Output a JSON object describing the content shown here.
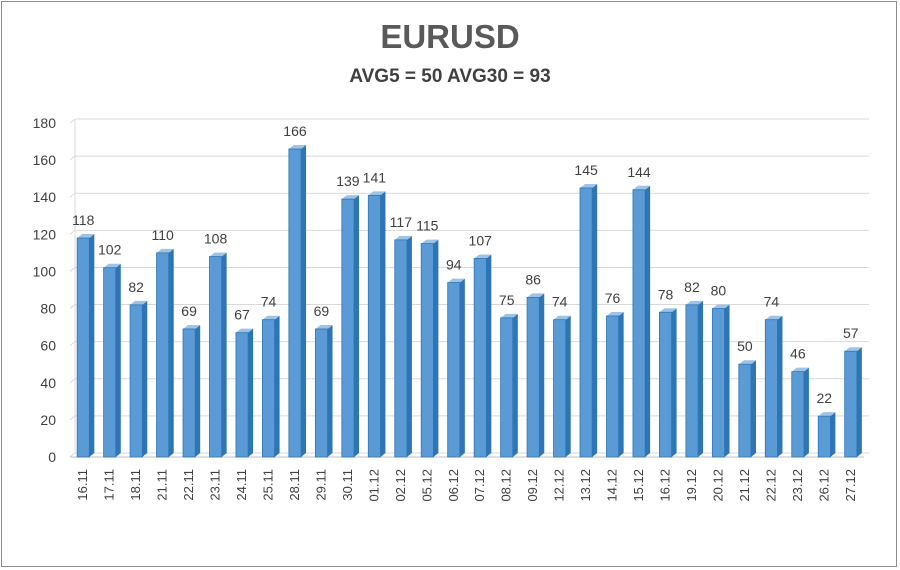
{
  "chart_data": {
    "type": "bar",
    "title": "EURUSD",
    "subtitle": "AVG5 = 50 AVG30 = 93",
    "categories": [
      "16.11",
      "17.11",
      "18.11",
      "21.11",
      "22.11",
      "23.11",
      "24.11",
      "25.11",
      "28.11",
      "29.11",
      "30.11",
      "01.12",
      "02.12",
      "05.12",
      "06.12",
      "07.12",
      "08.12",
      "09.12",
      "12.12",
      "13.12",
      "14.12",
      "15.12",
      "16.12",
      "19.12",
      "20.12",
      "21.12",
      "22.12",
      "23.12",
      "26.12",
      "27.12"
    ],
    "values": [
      118,
      102,
      82,
      110,
      69,
      108,
      67,
      74,
      166,
      69,
      139,
      141,
      117,
      115,
      94,
      107,
      75,
      86,
      74,
      145,
      76,
      144,
      78,
      82,
      80,
      50,
      74,
      46,
      22,
      57
    ],
    "ylim": [
      0,
      180
    ],
    "yticks": [
      0,
      20,
      40,
      60,
      80,
      100,
      120,
      140,
      160,
      180
    ],
    "grid": true,
    "data_labels": true,
    "bar_color": "#5b9bd5",
    "bar_edge_color": "#2e75b6"
  }
}
